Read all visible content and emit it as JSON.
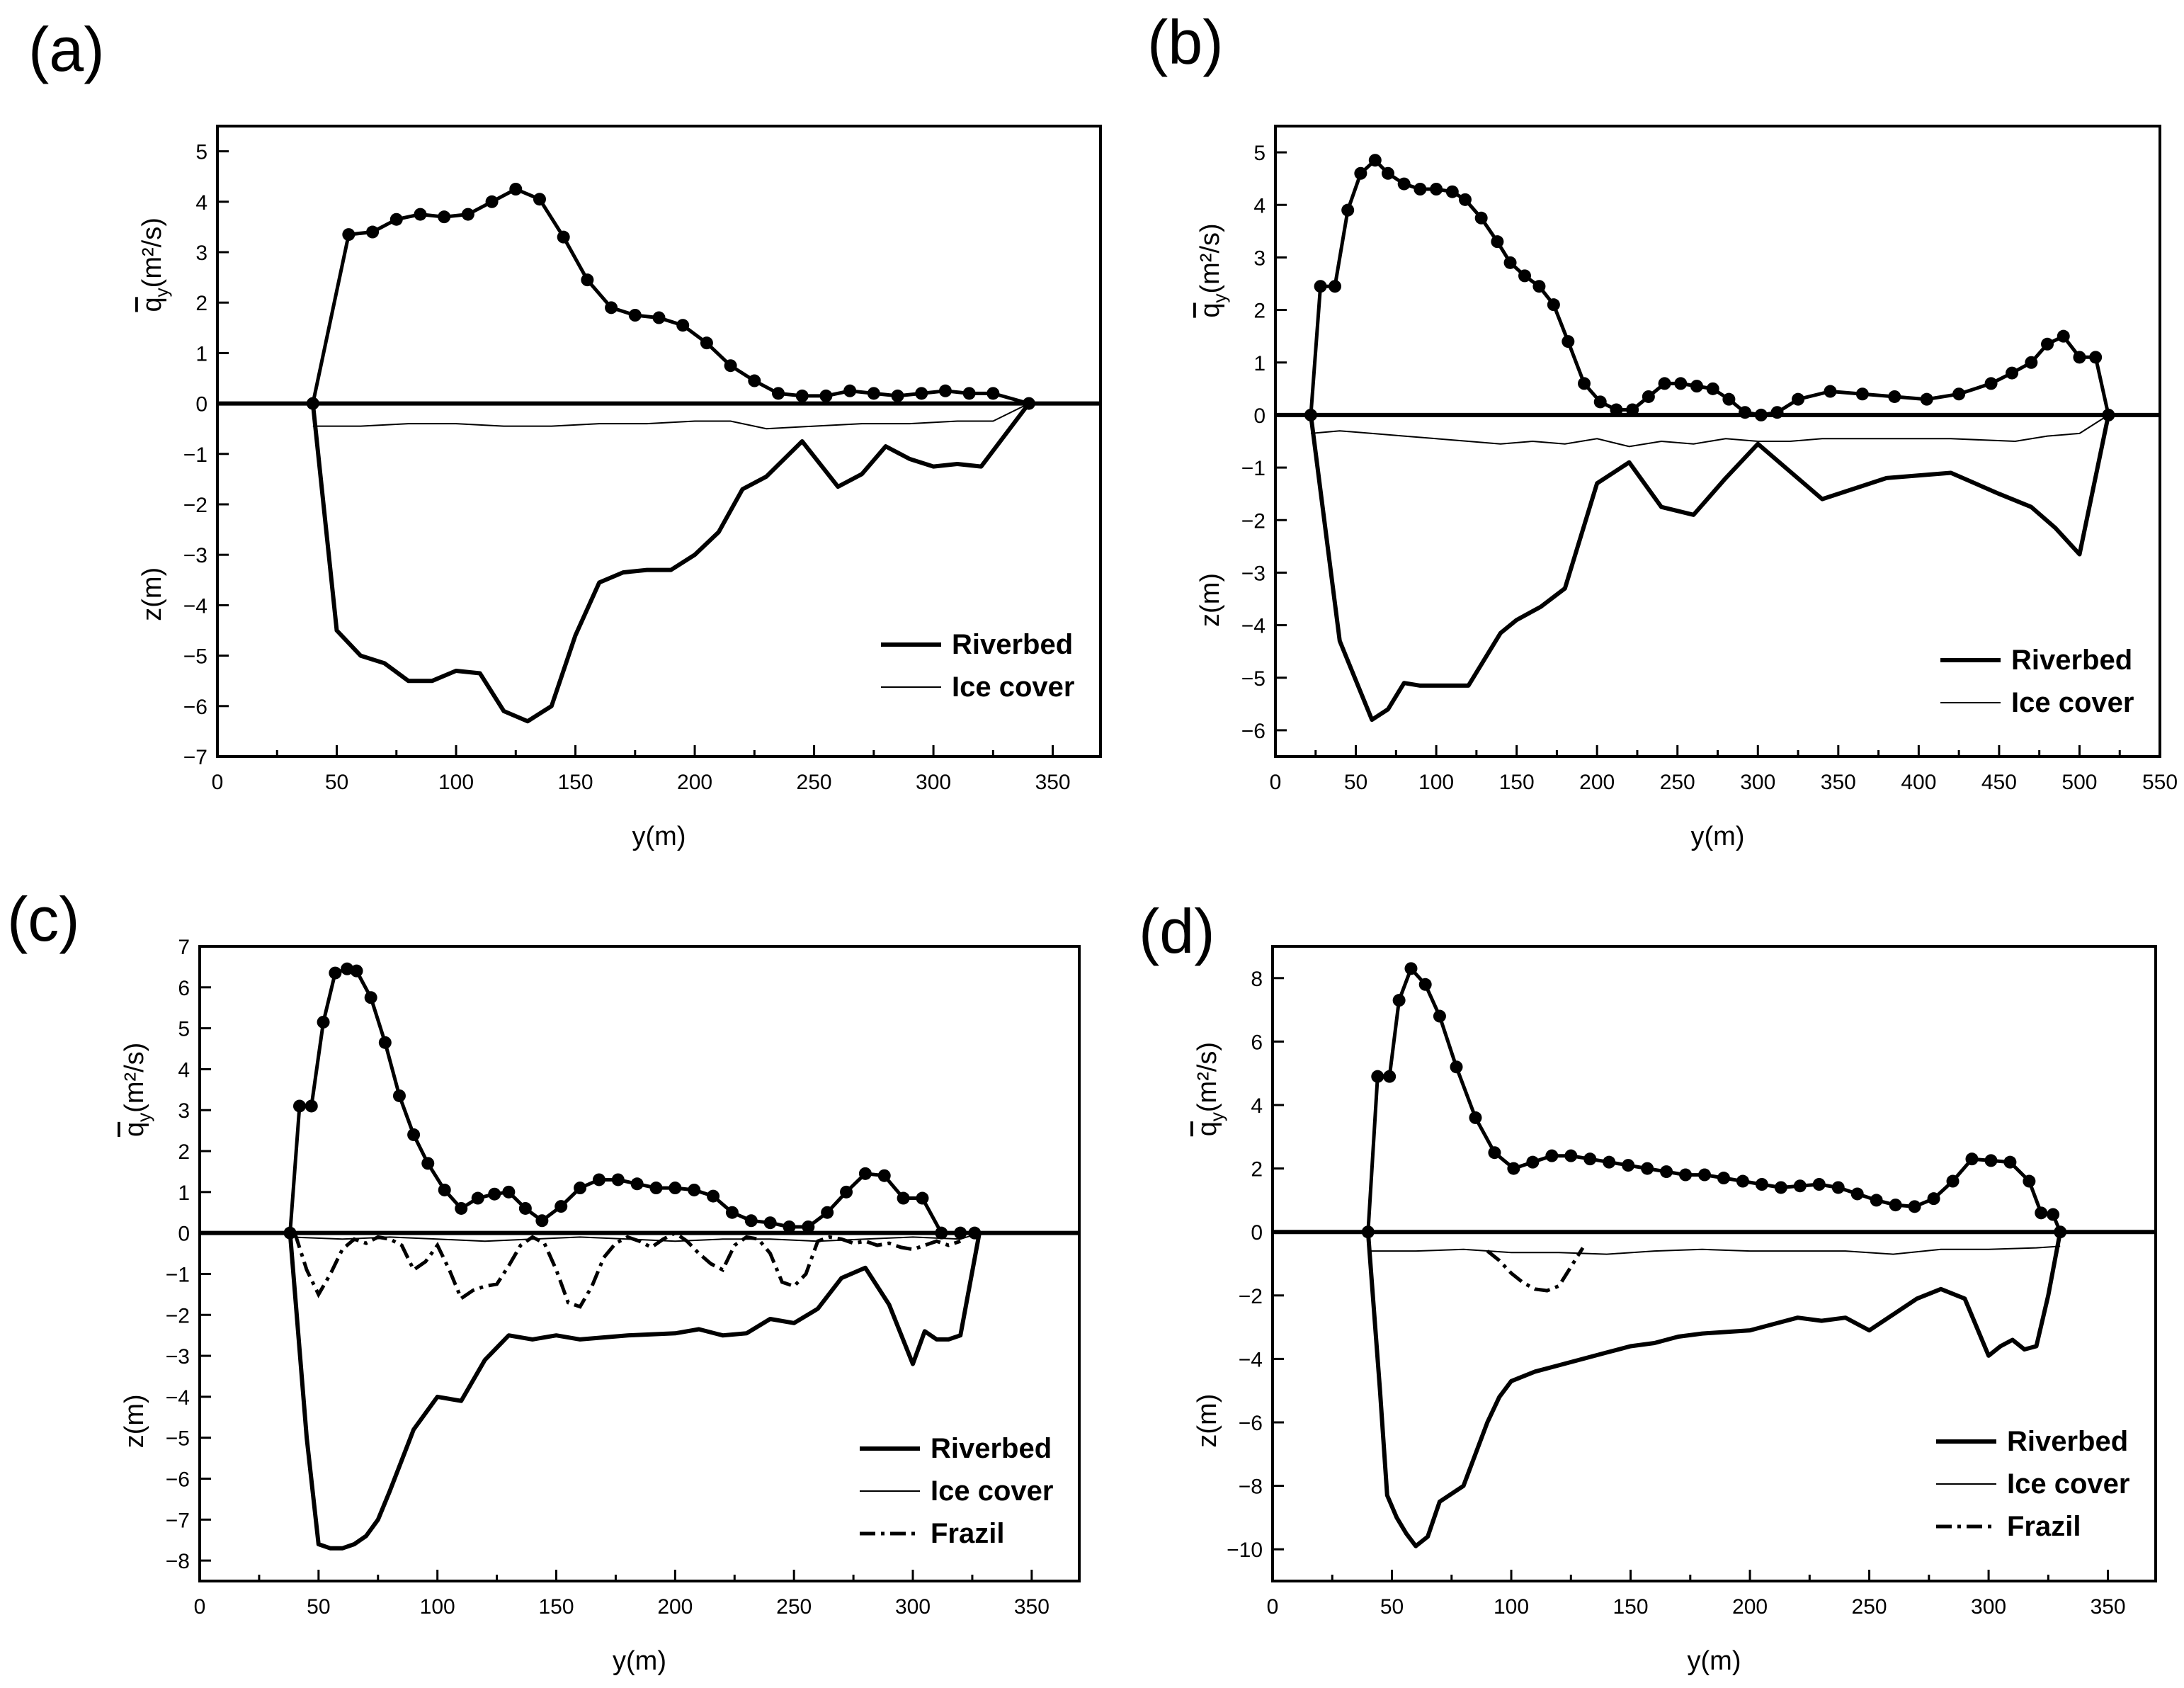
{
  "chart_data": [
    {
      "panel": "(a)",
      "type": "line",
      "xlabel": "y(m)",
      "ylabel_top": "q_y(m²/s)",
      "ylabel_bottom": "z(m)",
      "xlim": [
        0,
        370
      ],
      "xticks": [
        0,
        50,
        100,
        150,
        200,
        250,
        300,
        350
      ],
      "ylim": [
        -7,
        5.5
      ],
      "yticks": [
        -7,
        -6,
        -5,
        -4,
        -3,
        -2,
        -1,
        0,
        1,
        2,
        3,
        4,
        5
      ],
      "q": {
        "x": [
          40,
          55,
          65,
          75,
          85,
          95,
          105,
          115,
          125,
          135,
          145,
          155,
          165,
          175,
          185,
          195,
          205,
          215,
          225,
          235,
          245,
          255,
          265,
          275,
          285,
          295,
          305,
          315,
          325,
          340
        ],
        "y": [
          0,
          3.35,
          3.4,
          3.65,
          3.75,
          3.7,
          3.75,
          4.0,
          4.25,
          4.05,
          3.3,
          2.45,
          1.9,
          1.75,
          1.7,
          1.55,
          1.2,
          0.75,
          0.45,
          0.2,
          0.15,
          0.15,
          0.25,
          0.2,
          0.15,
          0.2,
          0.25,
          0.2,
          0.2,
          0
        ]
      },
      "riverbed": {
        "x": [
          40,
          50,
          60,
          70,
          80,
          90,
          100,
          110,
          120,
          130,
          140,
          150,
          160,
          170,
          180,
          190,
          200,
          210,
          220,
          230,
          245,
          260,
          270,
          280,
          290,
          300,
          310,
          320,
          340
        ],
        "y": [
          0,
          -4.5,
          -5.0,
          -5.15,
          -5.5,
          -5.5,
          -5.3,
          -5.35,
          -6.1,
          -6.3,
          -6.0,
          -4.6,
          -3.55,
          -3.35,
          -3.3,
          -3.3,
          -3.0,
          -2.55,
          -1.7,
          -1.45,
          -0.75,
          -1.65,
          -1.4,
          -0.85,
          -1.1,
          -1.25,
          -1.2,
          -1.25,
          0
        ]
      },
      "ice": {
        "x": [
          40,
          60,
          80,
          100,
          120,
          140,
          160,
          180,
          200,
          215,
          230,
          250,
          270,
          290,
          310,
          325,
          340
        ],
        "y": [
          -0.45,
          -0.45,
          -0.4,
          -0.4,
          -0.45,
          -0.45,
          -0.4,
          -0.4,
          -0.35,
          -0.35,
          -0.5,
          -0.45,
          -0.4,
          -0.4,
          -0.35,
          -0.35,
          0
        ]
      },
      "frazil": null,
      "legend": [
        "Riverbed",
        "Ice cover"
      ]
    },
    {
      "panel": "(b)",
      "type": "line",
      "xlabel": "y(m)",
      "ylabel_top": "q_y(m²/s)",
      "ylabel_bottom": "z(m)",
      "xlim": [
        0,
        550
      ],
      "xticks": [
        0,
        50,
        100,
        150,
        200,
        250,
        300,
        350,
        400,
        450,
        500,
        550
      ],
      "ylim": [
        -6.5,
        5.5
      ],
      "yticks": [
        -6,
        -5,
        -4,
        -3,
        -2,
        -1,
        0,
        1,
        2,
        3,
        4,
        5
      ],
      "q": {
        "x": [
          22,
          28,
          37,
          45,
          53,
          62,
          70,
          80,
          90,
          100,
          110,
          118,
          128,
          138,
          146,
          155,
          164,
          173,
          182,
          192,
          202,
          212,
          222,
          232,
          242,
          252,
          262,
          272,
          282,
          292,
          302,
          312,
          325,
          345,
          365,
          385,
          405,
          425,
          445,
          458,
          470,
          480,
          490,
          500,
          510,
          518
        ],
        "y": [
          0,
          2.45,
          2.45,
          3.9,
          4.6,
          4.85,
          4.6,
          4.4,
          4.3,
          4.3,
          4.25,
          4.1,
          3.75,
          3.3,
          2.9,
          2.65,
          2.45,
          2.1,
          1.4,
          0.6,
          0.25,
          0.1,
          0.1,
          0.35,
          0.6,
          0.6,
          0.55,
          0.5,
          0.3,
          0.05,
          0,
          0.05,
          0.3,
          0.45,
          0.4,
          0.35,
          0.3,
          0.4,
          0.6,
          0.8,
          1.0,
          1.35,
          1.5,
          1.1,
          1.1,
          0
        ]
      },
      "riverbed": {
        "x": [
          22,
          40,
          60,
          70,
          80,
          90,
          100,
          120,
          140,
          150,
          165,
          180,
          200,
          220,
          240,
          260,
          280,
          300,
          340,
          380,
          420,
          450,
          470,
          485,
          500,
          518
        ],
        "y": [
          0,
          -4.3,
          -5.8,
          -5.6,
          -5.1,
          -5.15,
          -5.15,
          -5.15,
          -4.15,
          -3.9,
          -3.65,
          -3.3,
          -1.3,
          -0.9,
          -1.75,
          -1.9,
          -1.2,
          -0.55,
          -1.6,
          -1.2,
          -1.1,
          -1.5,
          -1.75,
          -2.15,
          -2.65,
          0
        ]
      },
      "ice": {
        "x": [
          22,
          40,
          60,
          80,
          100,
          120,
          140,
          160,
          180,
          200,
          220,
          240,
          260,
          280,
          300,
          320,
          340,
          380,
          420,
          460,
          480,
          500,
          518
        ],
        "y": [
          -0.35,
          -0.3,
          -0.35,
          -0.4,
          -0.45,
          -0.5,
          -0.55,
          -0.5,
          -0.55,
          -0.45,
          -0.6,
          -0.5,
          -0.55,
          -0.45,
          -0.5,
          -0.5,
          -0.45,
          -0.45,
          -0.45,
          -0.5,
          -0.4,
          -0.35,
          0
        ]
      },
      "frazil": null,
      "legend": [
        "Riverbed",
        "Ice cover"
      ]
    },
    {
      "panel": "(c)",
      "type": "line",
      "xlabel": "y(m)",
      "ylabel_top": "q_y(m²/s)",
      "ylabel_bottom": "z(m)",
      "xlim": [
        0,
        370
      ],
      "xticks": [
        0,
        50,
        100,
        150,
        200,
        250,
        300,
        350
      ],
      "ylim": [
        -8.5,
        7
      ],
      "yticks": [
        -8,
        -7,
        -6,
        -5,
        -4,
        -3,
        -2,
        -1,
        0,
        1,
        2,
        3,
        4,
        5,
        6,
        7
      ],
      "q": {
        "x": [
          38,
          42,
          47,
          52,
          57,
          62,
          66,
          72,
          78,
          84,
          90,
          96,
          103,
          110,
          117,
          124,
          130,
          137,
          144,
          152,
          160,
          168,
          176,
          184,
          192,
          200,
          208,
          216,
          224,
          232,
          240,
          248,
          256,
          264,
          272,
          280,
          288,
          296,
          304,
          312,
          320,
          326
        ],
        "y": [
          0,
          3.1,
          3.1,
          5.15,
          6.35,
          6.45,
          6.4,
          5.75,
          4.65,
          3.35,
          2.4,
          1.7,
          1.05,
          0.6,
          0.85,
          0.95,
          1.0,
          0.6,
          0.3,
          0.65,
          1.1,
          1.3,
          1.3,
          1.2,
          1.1,
          1.1,
          1.05,
          0.9,
          0.5,
          0.3,
          0.25,
          0.15,
          0.15,
          0.5,
          1.0,
          1.45,
          1.4,
          0.85,
          0.85,
          0.0,
          0.0,
          0.0
        ]
      },
      "riverbed": {
        "x": [
          38,
          45,
          50,
          55,
          60,
          65,
          70,
          75,
          80,
          90,
          100,
          110,
          120,
          130,
          140,
          150,
          160,
          180,
          200,
          210,
          220,
          230,
          240,
          250,
          260,
          270,
          280,
          290,
          300,
          305,
          310,
          315,
          320,
          328
        ],
        "y": [
          0,
          -5.0,
          -7.6,
          -7.7,
          -7.7,
          -7.6,
          -7.4,
          -7.0,
          -6.3,
          -4.8,
          -4.0,
          -4.1,
          -3.1,
          -2.5,
          -2.6,
          -2.5,
          -2.6,
          -2.5,
          -2.45,
          -2.35,
          -2.5,
          -2.45,
          -2.1,
          -2.2,
          -1.85,
          -1.1,
          -0.85,
          -1.75,
          -3.2,
          -2.4,
          -2.6,
          -2.6,
          -2.5,
          0
        ]
      },
      "ice": {
        "x": [
          38,
          60,
          80,
          100,
          120,
          140,
          160,
          180,
          200,
          220,
          240,
          260,
          280,
          300,
          320,
          328
        ],
        "y": [
          -0.1,
          -0.15,
          -0.1,
          -0.15,
          -0.2,
          -0.15,
          -0.1,
          -0.15,
          -0.2,
          -0.15,
          -0.15,
          -0.2,
          -0.15,
          -0.1,
          -0.15,
          0
        ]
      },
      "frazil": {
        "x": [
          40,
          45,
          50,
          55,
          60,
          65,
          70,
          75,
          80,
          85,
          90,
          95,
          100,
          105,
          110,
          115,
          120,
          125,
          130,
          135,
          140,
          145,
          150,
          155,
          160,
          165,
          170,
          175,
          180,
          185,
          190,
          195,
          200,
          205,
          210,
          215,
          220,
          225,
          230,
          235,
          240,
          245,
          250,
          255,
          260,
          265,
          270,
          275,
          280,
          285,
          290,
          295,
          300,
          305,
          310,
          315,
          320
        ],
        "y": [
          0,
          -0.9,
          -1.5,
          -1.0,
          -0.4,
          -0.15,
          -0.25,
          -0.1,
          -0.15,
          -0.3,
          -0.9,
          -0.7,
          -0.3,
          -0.9,
          -1.6,
          -1.4,
          -1.3,
          -1.25,
          -0.8,
          -0.3,
          -0.1,
          -0.25,
          -0.9,
          -1.7,
          -1.8,
          -1.3,
          -0.6,
          -0.25,
          -0.1,
          -0.2,
          -0.35,
          -0.15,
          0,
          -0.2,
          -0.5,
          -0.75,
          -0.9,
          -0.3,
          -0.1,
          -0.15,
          -0.5,
          -1.2,
          -1.3,
          -1.0,
          -0.2,
          -0.1,
          -0.15,
          -0.25,
          -0.2,
          -0.3,
          -0.25,
          -0.35,
          -0.4,
          -0.3,
          -0.2,
          -0.3,
          -0.2
        ]
      },
      "legend": [
        "Riverbed",
        "Ice cover",
        "Frazil"
      ]
    },
    {
      "panel": "(d)",
      "type": "line",
      "xlabel": "y(m)",
      "ylabel_top": "q_y(m²/s)",
      "ylabel_bottom": "z(m)",
      "xlim": [
        0,
        370
      ],
      "xticks": [
        0,
        50,
        100,
        150,
        200,
        250,
        300,
        350
      ],
      "ylim": [
        -11,
        9
      ],
      "yticks": [
        -10,
        -8,
        -6,
        -4,
        -2,
        0,
        2,
        4,
        6,
        8
      ],
      "q": {
        "x": [
          40,
          44,
          49,
          53,
          58,
          64,
          70,
          77,
          85,
          93,
          101,
          109,
          117,
          125,
          133,
          141,
          149,
          157,
          165,
          173,
          181,
          189,
          197,
          205,
          213,
          221,
          229,
          237,
          245,
          253,
          261,
          269,
          277,
          285,
          293,
          301,
          309,
          317,
          322,
          327,
          330
        ],
        "y": [
          0,
          4.9,
          4.9,
          7.3,
          8.3,
          7.8,
          6.8,
          5.2,
          3.6,
          2.5,
          2.0,
          2.2,
          2.4,
          2.4,
          2.3,
          2.2,
          2.1,
          2.0,
          1.9,
          1.8,
          1.8,
          1.7,
          1.6,
          1.5,
          1.4,
          1.45,
          1.5,
          1.4,
          1.2,
          1.0,
          0.85,
          0.8,
          1.05,
          1.6,
          2.3,
          2.25,
          2.2,
          1.6,
          0.6,
          0.55,
          0
        ]
      },
      "riverbed": {
        "x": [
          40,
          45,
          48,
          52,
          56,
          60,
          65,
          70,
          80,
          90,
          95,
          100,
          110,
          120,
          130,
          140,
          150,
          160,
          170,
          180,
          200,
          210,
          220,
          230,
          240,
          250,
          260,
          270,
          280,
          290,
          300,
          305,
          310,
          315,
          320,
          325,
          330
        ],
        "y": [
          0,
          -5.0,
          -8.3,
          -9.0,
          -9.5,
          -9.9,
          -9.6,
          -8.5,
          -8.0,
          -6.0,
          -5.2,
          -4.7,
          -4.4,
          -4.2,
          -4.0,
          -3.8,
          -3.6,
          -3.5,
          -3.3,
          -3.2,
          -3.1,
          -2.9,
          -2.7,
          -2.8,
          -2.7,
          -3.1,
          -2.6,
          -2.1,
          -1.8,
          -2.1,
          -3.9,
          -3.6,
          -3.4,
          -3.7,
          -3.6,
          -2.0,
          0
        ]
      },
      "ice": {
        "x": [
          40,
          60,
          80,
          100,
          120,
          140,
          160,
          180,
          200,
          220,
          240,
          260,
          280,
          300,
          320,
          330
        ],
        "y": [
          -0.6,
          -0.6,
          -0.55,
          -0.65,
          -0.65,
          -0.7,
          -0.6,
          -0.55,
          -0.6,
          -0.6,
          -0.6,
          -0.7,
          -0.55,
          -0.55,
          -0.5,
          -0.45
        ]
      },
      "frazil": {
        "x": [
          90,
          95,
          100,
          105,
          110,
          115,
          120,
          125,
          130
        ],
        "y": [
          -0.6,
          -0.9,
          -1.3,
          -1.6,
          -1.8,
          -1.85,
          -1.7,
          -1.1,
          -0.5
        ]
      },
      "legend": [
        "Riverbed",
        "Ice cover",
        "Frazil"
      ]
    }
  ]
}
